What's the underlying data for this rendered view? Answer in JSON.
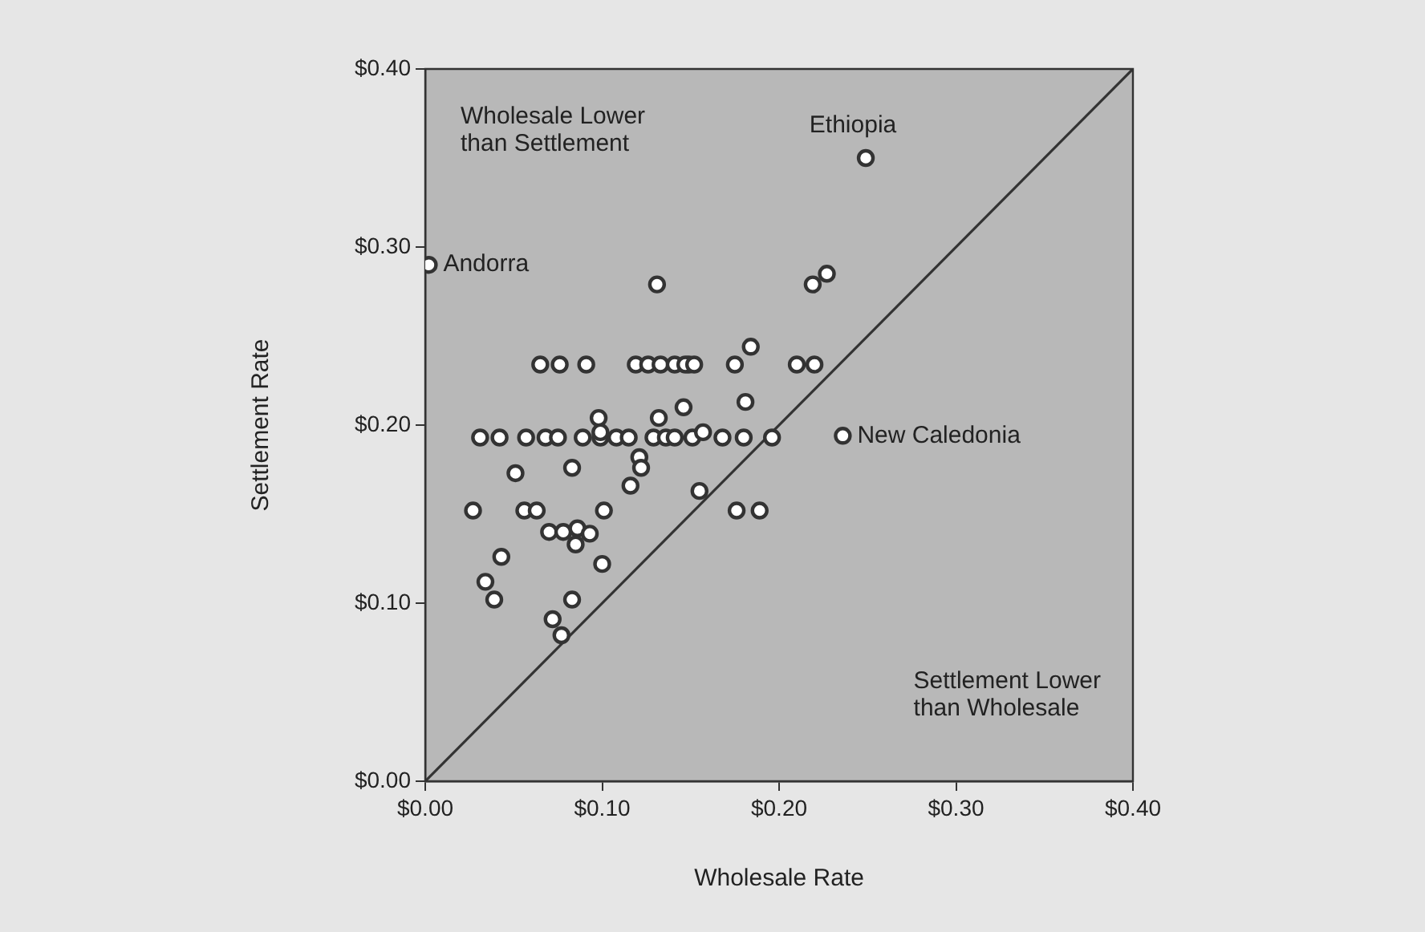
{
  "chart_data": {
    "type": "scatter",
    "xlabel": "Wholesale Rate",
    "ylabel": "Settlement Rate",
    "xlim": [
      0,
      0.4
    ],
    "ylim": [
      0,
      0.4
    ],
    "xticks": [
      {
        "value": 0,
        "label": "$0.00"
      },
      {
        "value": 0.1,
        "label": "$0.10"
      },
      {
        "value": 0.2,
        "label": "$0.20"
      },
      {
        "value": 0.3,
        "label": "$0.30"
      },
      {
        "value": 0.4,
        "label": "$0.40"
      }
    ],
    "yticks": [
      {
        "value": 0,
        "label": "$0.00"
      },
      {
        "value": 0.1,
        "label": "$0.10"
      },
      {
        "value": 0.2,
        "label": "$0.20"
      },
      {
        "value": 0.3,
        "label": "$0.30"
      },
      {
        "value": 0.4,
        "label": "$0.40"
      }
    ],
    "grid": false,
    "legend": false,
    "marker": "circle",
    "series": [
      {
        "color": "#333333",
        "x": [
          0.249,
          0.002,
          0.236,
          0.131,
          0.227,
          0.219,
          0.184,
          0.065,
          0.076,
          0.091,
          0.119,
          0.126,
          0.133,
          0.141,
          0.149,
          0.146,
          0.098,
          0.132,
          0.147,
          0.152,
          0.175,
          0.21,
          0.22,
          0.181,
          0.031,
          0.042,
          0.057,
          0.068,
          0.075,
          0.089,
          0.099,
          0.108,
          0.115,
          0.129,
          0.136,
          0.141,
          0.151,
          0.157,
          0.168,
          0.18,
          0.196,
          0.099,
          0.051,
          0.083,
          0.121,
          0.122,
          0.116,
          0.155,
          0.027,
          0.056,
          0.063,
          0.101,
          0.07,
          0.078,
          0.086,
          0.093,
          0.085,
          0.043,
          0.1,
          0.034,
          0.039,
          0.083,
          0.072,
          0.077,
          0.176,
          0.189
        ],
        "values": [
          0.35,
          0.29,
          0.194,
          0.279,
          0.285,
          0.279,
          0.244,
          0.234,
          0.234,
          0.234,
          0.234,
          0.234,
          0.234,
          0.234,
          0.234,
          0.21,
          0.204,
          0.204,
          0.234,
          0.234,
          0.234,
          0.234,
          0.234,
          0.213,
          0.193,
          0.193,
          0.193,
          0.193,
          0.193,
          0.193,
          0.193,
          0.193,
          0.193,
          0.193,
          0.193,
          0.193,
          0.193,
          0.196,
          0.193,
          0.193,
          0.193,
          0.196,
          0.173,
          0.176,
          0.182,
          0.176,
          0.166,
          0.163,
          0.152,
          0.152,
          0.152,
          0.152,
          0.14,
          0.14,
          0.142,
          0.139,
          0.133,
          0.126,
          0.122,
          0.112,
          0.102,
          0.102,
          0.091,
          0.082,
          0.152,
          0.152
        ]
      },
      {
        "type": "line",
        "color": "#333333",
        "x": [
          0,
          0.4
        ],
        "values": [
          0,
          0.4
        ],
        "marker": "none",
        "line_style": "solid"
      }
    ],
    "annotations": [
      "Wholesale Lower than Settlement",
      "Settlement Lower than Wholesale",
      {
        "text": "Ethiopia",
        "x": 0.249,
        "y": 0.35
      },
      {
        "text": "Andorra",
        "x": 0.002,
        "y": 0.29
      },
      {
        "text": "New Caledonia",
        "x": 0.236,
        "y": 0.194
      }
    ]
  }
}
